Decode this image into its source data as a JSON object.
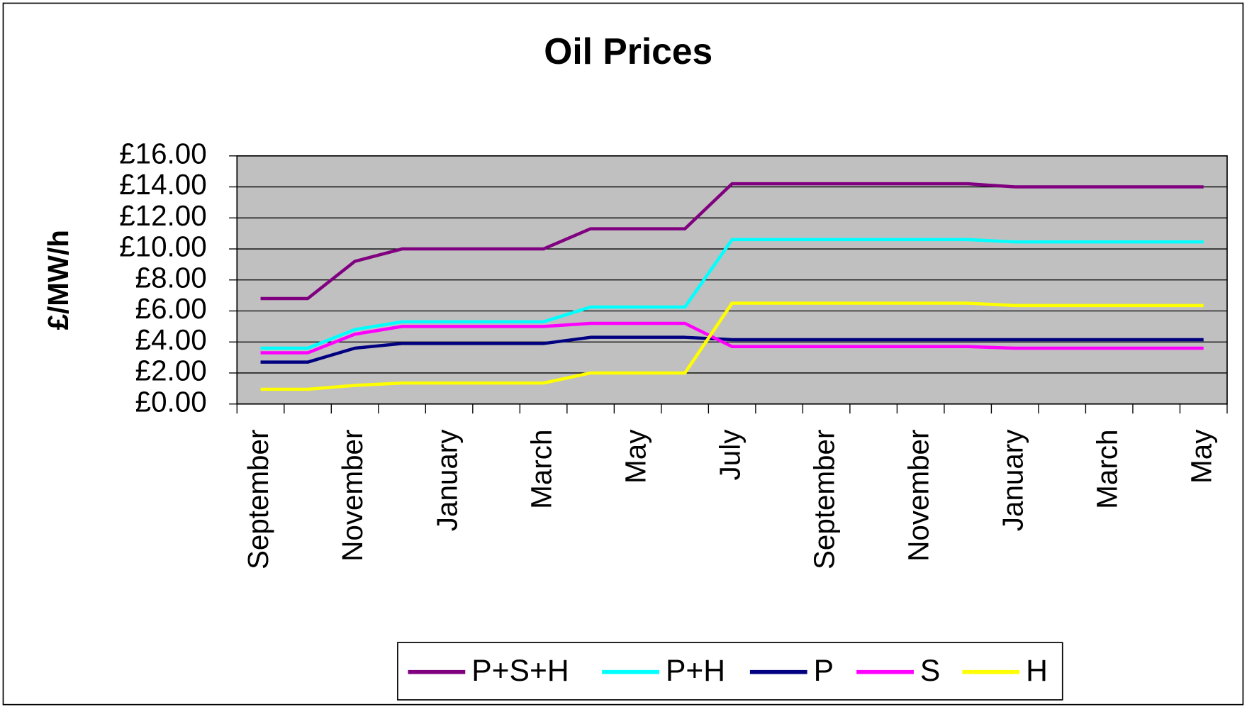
{
  "chart_data": {
    "type": "line",
    "title": "Oil Prices",
    "y_label": "£/MW/h",
    "categories": [
      "September",
      null,
      "November",
      null,
      "January",
      null,
      "March",
      null,
      "May",
      null,
      "July",
      null,
      "September",
      null,
      "November",
      null,
      "January",
      null,
      "March",
      null,
      "May"
    ],
    "series": [
      {
        "name": "P+S+H",
        "color": "#800080",
        "values": [
          6.8,
          6.8,
          9.2,
          10,
          10,
          10,
          10,
          11.3,
          11.3,
          11.3,
          14.2,
          14.2,
          14.2,
          14.2,
          14.2,
          14.2,
          14,
          14,
          14,
          14,
          14
        ]
      },
      {
        "name": "P+H",
        "color": "#00ffff",
        "values": [
          3.6,
          3.6,
          4.8,
          5.3,
          5.3,
          5.3,
          5.3,
          6.25,
          6.25,
          6.25,
          10.6,
          10.6,
          10.6,
          10.6,
          10.6,
          10.6,
          10.45,
          10.45,
          10.45,
          10.45,
          10.45
        ]
      },
      {
        "name": "P",
        "color": "#000080",
        "values": [
          2.7,
          2.7,
          3.6,
          3.9,
          3.9,
          3.9,
          3.9,
          4.3,
          4.3,
          4.3,
          4.15,
          4.15,
          4.15,
          4.15,
          4.15,
          4.15,
          4.15,
          4.15,
          4.15,
          4.15,
          4.15
        ]
      },
      {
        "name": "S",
        "color": "#ff00ff",
        "values": [
          3.3,
          3.3,
          4.5,
          5,
          5,
          5,
          5,
          5.2,
          5.2,
          5.2,
          3.7,
          3.7,
          3.7,
          3.7,
          3.7,
          3.7,
          3.6,
          3.6,
          3.6,
          3.6,
          3.6
        ]
      },
      {
        "name": "H",
        "color": "#ffff00",
        "values": [
          0.95,
          0.95,
          1.2,
          1.35,
          1.35,
          1.35,
          1.35,
          2,
          2,
          2,
          6.5,
          6.5,
          6.5,
          6.5,
          6.5,
          6.5,
          6.35,
          6.35,
          6.35,
          6.35,
          6.35
        ]
      }
    ],
    "ylim": [
      0,
      16
    ],
    "yticks": [
      {
        "value": 0,
        "label": "£0.00"
      },
      {
        "value": 2,
        "label": "£2.00"
      },
      {
        "value": 4,
        "label": "£4.00"
      },
      {
        "value": 6,
        "label": "£6.00"
      },
      {
        "value": 8,
        "label": "£8.00"
      },
      {
        "value": 10,
        "label": "£10.00"
      },
      {
        "value": 12,
        "label": "£12.00"
      },
      {
        "value": 14,
        "label": "£14.00"
      },
      {
        "value": 16,
        "label": "£16.00"
      }
    ],
    "grid": true,
    "legend": "bottom",
    "plot_background": "#c0c0c0"
  }
}
